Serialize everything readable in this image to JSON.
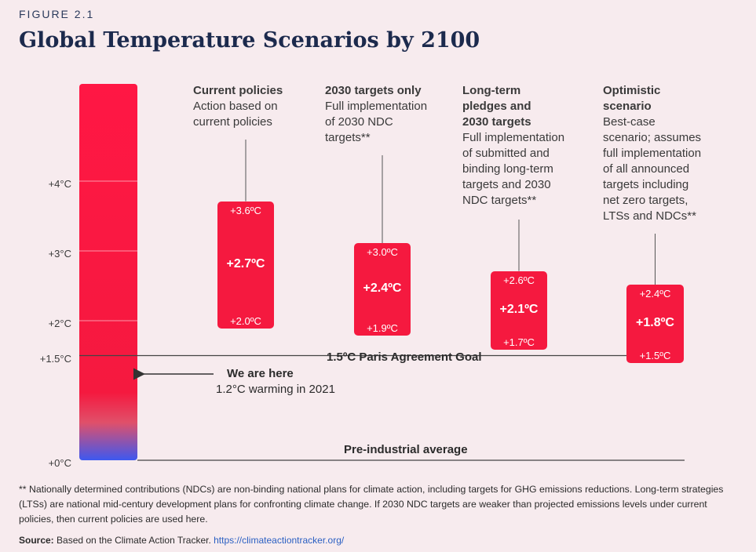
{
  "figure_label": "FIGURE 2.1",
  "title": "Global Temperature Scenarios by 2100",
  "chart_data": {
    "type": "range",
    "title": "Global Temperature Scenarios by 2100",
    "y_unit": "°C",
    "ylim": [
      0,
      5
    ],
    "y_ticks": [
      {
        "value": 0,
        "label": "+0°C"
      },
      {
        "value": 1.5,
        "label": "+1.5°C"
      },
      {
        "value": 2,
        "label": "+2°C"
      },
      {
        "value": 3,
        "label": "+3°C"
      },
      {
        "value": 4,
        "label": "+4°C"
      }
    ],
    "scenarios": [
      {
        "name": "Current policies",
        "description": "Action based on\ncurrent policies",
        "low": 2.0,
        "mid": 2.7,
        "high": 3.6,
        "low_label": "+2.0ºC",
        "mid_label": "+2.7ºC",
        "high_label": "+3.6ºC"
      },
      {
        "name": "2030 targets only",
        "description": "Full implementation\nof 2030 NDC\ntargets**",
        "low": 1.9,
        "mid": 2.4,
        "high": 3.0,
        "low_label": "+1.9ºC",
        "mid_label": "+2.4ºC",
        "high_label": "+3.0ºC"
      },
      {
        "name": "Long-term\npledges and\n2030 targets",
        "description": "Full implementation\nof submitted and\nbinding long-term\ntargets and 2030\nNDC targets**",
        "low": 1.7,
        "mid": 2.1,
        "high": 2.6,
        "low_label": "+1.7ºC",
        "mid_label": "+2.1ºC",
        "high_label": "+2.6ºC"
      },
      {
        "name": "Optimistic\nscenario",
        "description": "Best-case\nscenario; assumes\nfull implementation\nof all announced\ntargets including\nnet zero targets,\nLTSs and NDCs**",
        "low": 1.5,
        "mid": 1.8,
        "high": 2.4,
        "low_label": "+1.5ºC",
        "mid_label": "+1.8ºC",
        "high_label": "+2.4ºC"
      }
    ],
    "reference_lines": [
      {
        "value": 1.5,
        "label": "1.5ºC Paris Agreement Goal"
      },
      {
        "value": 0,
        "label": "Pre-industrial average"
      }
    ],
    "current": {
      "value": 1.2,
      "title": "We are here",
      "subtitle": "1.2°C warming in 2021"
    }
  },
  "footnote": "** Nationally determined contributions (NDCs) are non-binding national plans for climate action, including targets for GHG emissions reductions. Long-term strategies (LTSs) are national mid-century development plans for confronting climate change. If 2030 NDC targets are weaker than projected emissions levels under current policies, then current policies are used here.",
  "source": {
    "label": "Source:",
    "text": " Based on the Climate Action Tracker. ",
    "link": "https://climateactiontracker.org/"
  },
  "colors": {
    "bar_top": "#ff1744",
    "bar_fade": "#f03a55",
    "bar_bottom": "#3d58f0",
    "box": "#f5193f",
    "background": "#f7ebee"
  }
}
